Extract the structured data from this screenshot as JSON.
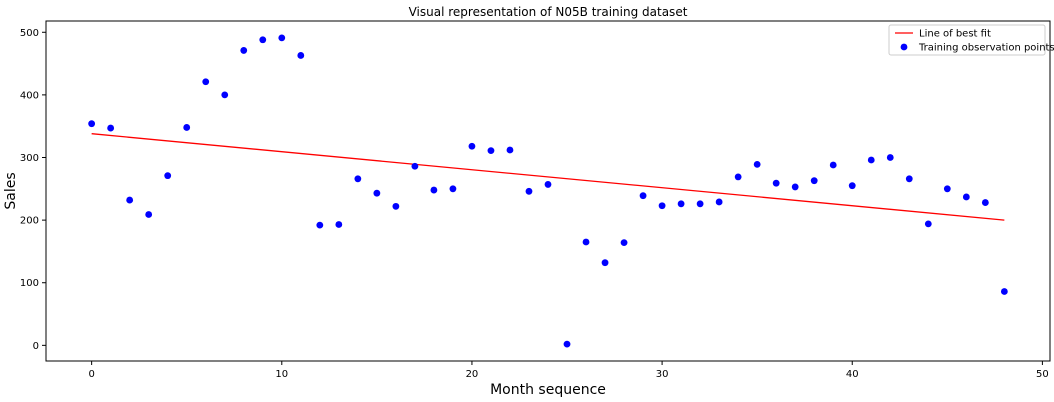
{
  "chart_data": {
    "type": "scatter",
    "title": "Visual representation of N05B training dataset",
    "xlabel": "Month sequence",
    "ylabel": "Sales",
    "xlim": [
      -2.4,
      50.4
    ],
    "ylim": [
      -25,
      518
    ],
    "x_ticks": [
      0,
      10,
      20,
      30,
      40,
      50
    ],
    "y_ticks": [
      0,
      100,
      200,
      300,
      400,
      500
    ],
    "grid": false,
    "legend_position": "top-right",
    "series": [
      {
        "name": "Line of best fit",
        "kind": "line",
        "color": "#ff0000",
        "x": [
          0,
          48
        ],
        "y": [
          338,
          200
        ]
      },
      {
        "name": "Training observation points",
        "kind": "scatter",
        "color": "#0000ff",
        "x": [
          0,
          1,
          2,
          3,
          4,
          5,
          6,
          7,
          8,
          9,
          10,
          11,
          12,
          13,
          14,
          15,
          16,
          17,
          18,
          19,
          20,
          21,
          22,
          23,
          24,
          25,
          26,
          27,
          28,
          29,
          30,
          31,
          32,
          33,
          34,
          35,
          36,
          37,
          38,
          39,
          40,
          41,
          42,
          43,
          44,
          45,
          46,
          47,
          48
        ],
        "y": [
          354,
          347,
          232,
          209,
          271,
          348,
          421,
          400,
          471,
          488,
          491,
          463,
          192,
          193,
          266,
          243,
          222,
          286,
          248,
          250,
          318,
          311,
          312,
          246,
          257,
          2,
          165,
          132,
          164,
          239,
          223,
          226,
          226,
          229,
          269,
          289,
          259,
          253,
          263,
          288,
          255,
          296,
          300,
          266,
          194,
          250,
          237,
          228,
          86
        ]
      }
    ]
  }
}
